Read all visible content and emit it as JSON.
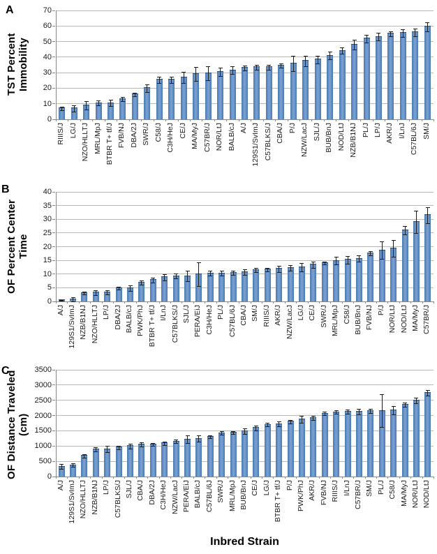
{
  "figure": {
    "xlabel": "Inbred Strain",
    "bar_color": "#4f81bd",
    "bar_border_color": "#2e4d75",
    "gridline_color": "#b8b8b8",
    "error_bar_color": "#1a1a1a"
  },
  "chart_data": [
    {
      "panel": "A",
      "type": "bar",
      "ylabel": "TST Percent Immobility",
      "ylim": [
        0,
        70
      ],
      "ytick_step": 10,
      "grid": true,
      "legend": false,
      "categories": [
        "RIIIS/J",
        "LG/J",
        "NZO/HLLTJ",
        "MRL/MpJ",
        "BTBR T+ tf/J",
        "FVB/NJ",
        "DBA/2J",
        "SWR/J",
        "C58/J",
        "C3H/HeJ",
        "CE/J",
        "MA/MyJ",
        "C57BR/J",
        "NOR/LtJ",
        "BALB/cJ",
        "A/J",
        "129S1/SvImJ",
        "C57BLKS/J",
        "CBA/J",
        "P/J",
        "NZW/LacJ",
        "SJL/J",
        "BUB/BnJ",
        "NOD/LtJ",
        "NZB/B1NJ",
        "PL/J",
        "LP/J",
        "AKR/J",
        "I/LnJ",
        "C57BL/6J",
        "SM/J"
      ],
      "values": [
        7,
        7,
        9,
        10.5,
        10.5,
        13,
        16,
        20,
        25.5,
        25.5,
        27,
        29,
        29.5,
        30.5,
        31.5,
        33,
        33.5,
        33.5,
        34.5,
        36,
        37.5,
        38.5,
        41,
        44,
        48,
        52,
        53,
        55,
        55.5,
        56,
        59.5
      ],
      "errors": [
        1.2,
        2,
        2.5,
        1.5,
        2,
        1.5,
        1.2,
        2.5,
        2,
        2,
        3.5,
        4.5,
        4.5,
        2.5,
        2.5,
        1.5,
        1.5,
        1.5,
        1.5,
        5,
        3.5,
        2.5,
        2.5,
        2,
        3,
        2.5,
        2.5,
        1.5,
        2.5,
        2.5,
        3
      ]
    },
    {
      "panel": "B",
      "type": "bar",
      "ylabel": "OF Percent Center Time",
      "ylim": [
        0,
        40
      ],
      "ytick_step": 5,
      "grid": true,
      "legend": false,
      "categories": [
        "A/J",
        "129S1/SvImJ",
        "NZB/B1NJ",
        "NZO/HLLTJ",
        "LP/J",
        "DBA/2J",
        "BALB/cJ",
        "PWK/PhJ",
        "BTBR T+ tf/J",
        "I/LnJ",
        "C57BLKS/J",
        "SJL/J",
        "PERA/EiJ",
        "C3H/HeJ",
        "PL/J",
        "C57BL/6J",
        "CBA/J",
        "SM/J",
        "RIIIS/J",
        "AKR/J",
        "NZW/LacJ",
        "LG/J",
        "CE/J",
        "SWR/J",
        "MRL/MpJ",
        "C58/J",
        "BUB/BnJ",
        "FVB/NJ",
        "P/J",
        "NOR/LtJ",
        "NOD/LtJ",
        "MA/MyJ",
        "C57BR/J"
      ],
      "values": [
        0.4,
        0.8,
        3,
        3.2,
        3.3,
        4.8,
        4.8,
        6.8,
        7.8,
        8.8,
        9.3,
        9.3,
        10,
        10.3,
        10.3,
        10.4,
        10.6,
        11.4,
        11.6,
        11.9,
        12.2,
        12.4,
        13.4,
        14,
        14.9,
        15.2,
        15.6,
        17.6,
        18.7,
        19.3,
        26,
        29,
        31.5
      ],
      "errors": [
        0.2,
        0.8,
        0.5,
        0.8,
        0.8,
        0.5,
        1,
        0.8,
        0.9,
        1.1,
        0.8,
        2,
        4.3,
        1,
        0.8,
        0.7,
        1,
        0.8,
        0.6,
        1.1,
        1,
        1.5,
        1.2,
        0.5,
        1.3,
        1.4,
        1.2,
        0.8,
        3.2,
        3,
        1.5,
        4,
        3
      ]
    },
    {
      "panel": "C",
      "type": "bar",
      "ylabel": "OF Distance Traveled (cm)",
      "ylim": [
        0,
        3500
      ],
      "ytick_step": 500,
      "grid": true,
      "legend": false,
      "categories": [
        "A/J",
        "129S1/SvImJ",
        "NZO/HLLTJ",
        "NZB/B1NJ",
        "LP/J",
        "C57BLKS/J",
        "SJL/J",
        "CBA/J",
        "DBA/2J",
        "C3H/HeJ",
        "NZW/LacJ",
        "PERA/EiJ",
        "BALB/cJ",
        "C57BL/6J",
        "SWR/J",
        "MRL/MpJ",
        "BUB/BnJ",
        "CE/J",
        "LG/J",
        "BTBR T+ tf/J",
        "P/J",
        "PWK/PhJ",
        "AKR/J",
        "FVB/NJ",
        "RIIIS/J",
        "I/LnJ",
        "C57BR/J",
        "SM/J",
        "PL/J",
        "C58/J",
        "MA/MyJ",
        "NOR/LtJ",
        "NOD/LtJ"
      ],
      "values": [
        330,
        370,
        680,
        900,
        900,
        950,
        1000,
        1050,
        1050,
        1090,
        1150,
        1220,
        1240,
        1300,
        1430,
        1440,
        1480,
        1600,
        1700,
        1720,
        1800,
        1870,
        1920,
        2070,
        2110,
        2120,
        2120,
        2150,
        2160,
        2170,
        2350,
        2500,
        2750
      ],
      "errors": [
        80,
        60,
        60,
        70,
        100,
        50,
        80,
        60,
        50,
        50,
        60,
        120,
        100,
        40,
        60,
        50,
        90,
        80,
        60,
        80,
        60,
        110,
        60,
        50,
        60,
        70,
        90,
        60,
        540,
        140,
        70,
        90,
        90
      ]
    }
  ],
  "layout_text": {
    "panel_a_letter": "A",
    "panel_b_letter": "B",
    "panel_c_letter": "C",
    "x_axis_title": "Inbred Strain"
  }
}
